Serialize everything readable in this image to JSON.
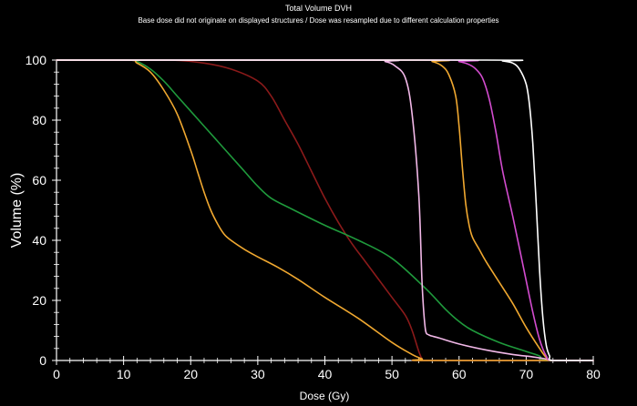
{
  "chart_data": {
    "type": "line",
    "title": "Total Volume DVH",
    "subtitle": "Base dose did not originate on displayed structures / Dose was resampled due to different calculation properties",
    "xlabel": "Dose (Gy)",
    "ylabel": "Volume (%)",
    "xlim": [
      0,
      80
    ],
    "ylim": [
      0,
      100
    ],
    "xticks": [
      0,
      10,
      20,
      30,
      40,
      50,
      60,
      70,
      80
    ],
    "yticks": [
      0,
      20,
      40,
      60,
      80,
      100
    ],
    "xtick_labels": [
      "0",
      "10",
      "20",
      "30",
      "40",
      "50",
      "60",
      "70",
      "80"
    ],
    "ytick_labels": [
      "0",
      "20",
      "40",
      "60",
      "80",
      "100"
    ],
    "minor_per_major_x": 5,
    "minor_per_major_y": 5,
    "grid": false,
    "legend": "none",
    "axis_color": "#ffffff",
    "series": [
      {
        "name": "dark-red-structure",
        "color": "#8b1a1a",
        "x": [
          0,
          12,
          17,
          22,
          26,
          30,
          32,
          34,
          36,
          38,
          40,
          42,
          44,
          46,
          48,
          50,
          52,
          53,
          54,
          54.5,
          55,
          80
        ],
        "y": [
          100,
          100,
          100,
          99,
          97,
          93,
          88,
          80,
          72,
          63,
          54,
          46,
          39,
          33,
          27,
          21,
          15,
          10,
          3,
          0.5,
          0,
          0
        ]
      },
      {
        "name": "green-structure",
        "color": "#1f9a3c",
        "x": [
          0,
          10.5,
          12,
          14,
          16,
          18,
          20,
          22,
          24,
          26,
          28,
          30,
          32,
          35,
          40,
          45,
          50,
          55,
          58,
          60,
          62,
          66,
          70,
          72,
          73,
          80
        ],
        "y": [
          100,
          100,
          99.5,
          97,
          93,
          88,
          83,
          78,
          73,
          68,
          63,
          58,
          54,
          50.5,
          45,
          40,
          34,
          24,
          17,
          13,
          10,
          6,
          3,
          1.5,
          0,
          0
        ]
      },
      {
        "name": "orange-structure-low",
        "color": "#f0a830",
        "x": [
          0,
          10.5,
          12,
          14,
          16,
          18,
          20,
          21,
          22,
          23,
          24,
          25,
          26,
          28,
          30,
          33,
          36,
          40,
          45,
          50,
          53,
          54.5,
          55,
          80
        ],
        "y": [
          100,
          100,
          99,
          96,
          90,
          82,
          70,
          63,
          56,
          50,
          45.5,
          42,
          40,
          37,
          34.5,
          31,
          27,
          21,
          14,
          6,
          2,
          0.5,
          0,
          0
        ]
      },
      {
        "name": "pink-white-structure",
        "color": "#f2b8e8",
        "x": [
          0,
          47,
          49,
          50.5,
          52,
          53,
          54,
          54.5,
          55,
          55.5,
          57,
          60,
          64,
          68,
          71,
          73,
          74,
          80
        ],
        "y": [
          100,
          100,
          99.5,
          98,
          94,
          82,
          55,
          25,
          10,
          8.5,
          7.5,
          5.5,
          3.5,
          2,
          1.2,
          0.5,
          0,
          0
        ]
      },
      {
        "name": "orange-structure-high",
        "color": "#f0a830",
        "x": [
          0,
          54,
          56,
          57.5,
          58.5,
          59.5,
          60,
          60.5,
          61,
          61.5,
          62,
          63,
          64,
          66,
          68,
          70,
          72,
          73,
          74,
          80
        ],
        "y": [
          100,
          100,
          99.5,
          98,
          95,
          88,
          78,
          64,
          52,
          45,
          41,
          37,
          33,
          26,
          19,
          11,
          4,
          1,
          0,
          0
        ]
      },
      {
        "name": "magenta-structure",
        "color": "#d34ccf",
        "x": [
          0,
          58,
          60,
          61.5,
          62.5,
          63.5,
          64.5,
          65.5,
          66.5,
          68,
          69.5,
          71,
          72,
          73,
          74,
          80
        ],
        "y": [
          100,
          100,
          99.5,
          98.5,
          97,
          94,
          87,
          76,
          63,
          48,
          32,
          16,
          7,
          1.5,
          0,
          0
        ]
      },
      {
        "name": "white-structure",
        "color": "#ffffff",
        "x": [
          0,
          64,
          66.5,
          68,
          69,
          70,
          70.5,
          71,
          71.5,
          72,
          72.5,
          73,
          73.5,
          74,
          80
        ],
        "y": [
          100,
          100,
          99.7,
          99,
          97,
          92,
          85,
          72,
          52,
          30,
          14,
          5,
          1.5,
          0,
          0
        ]
      }
    ]
  }
}
